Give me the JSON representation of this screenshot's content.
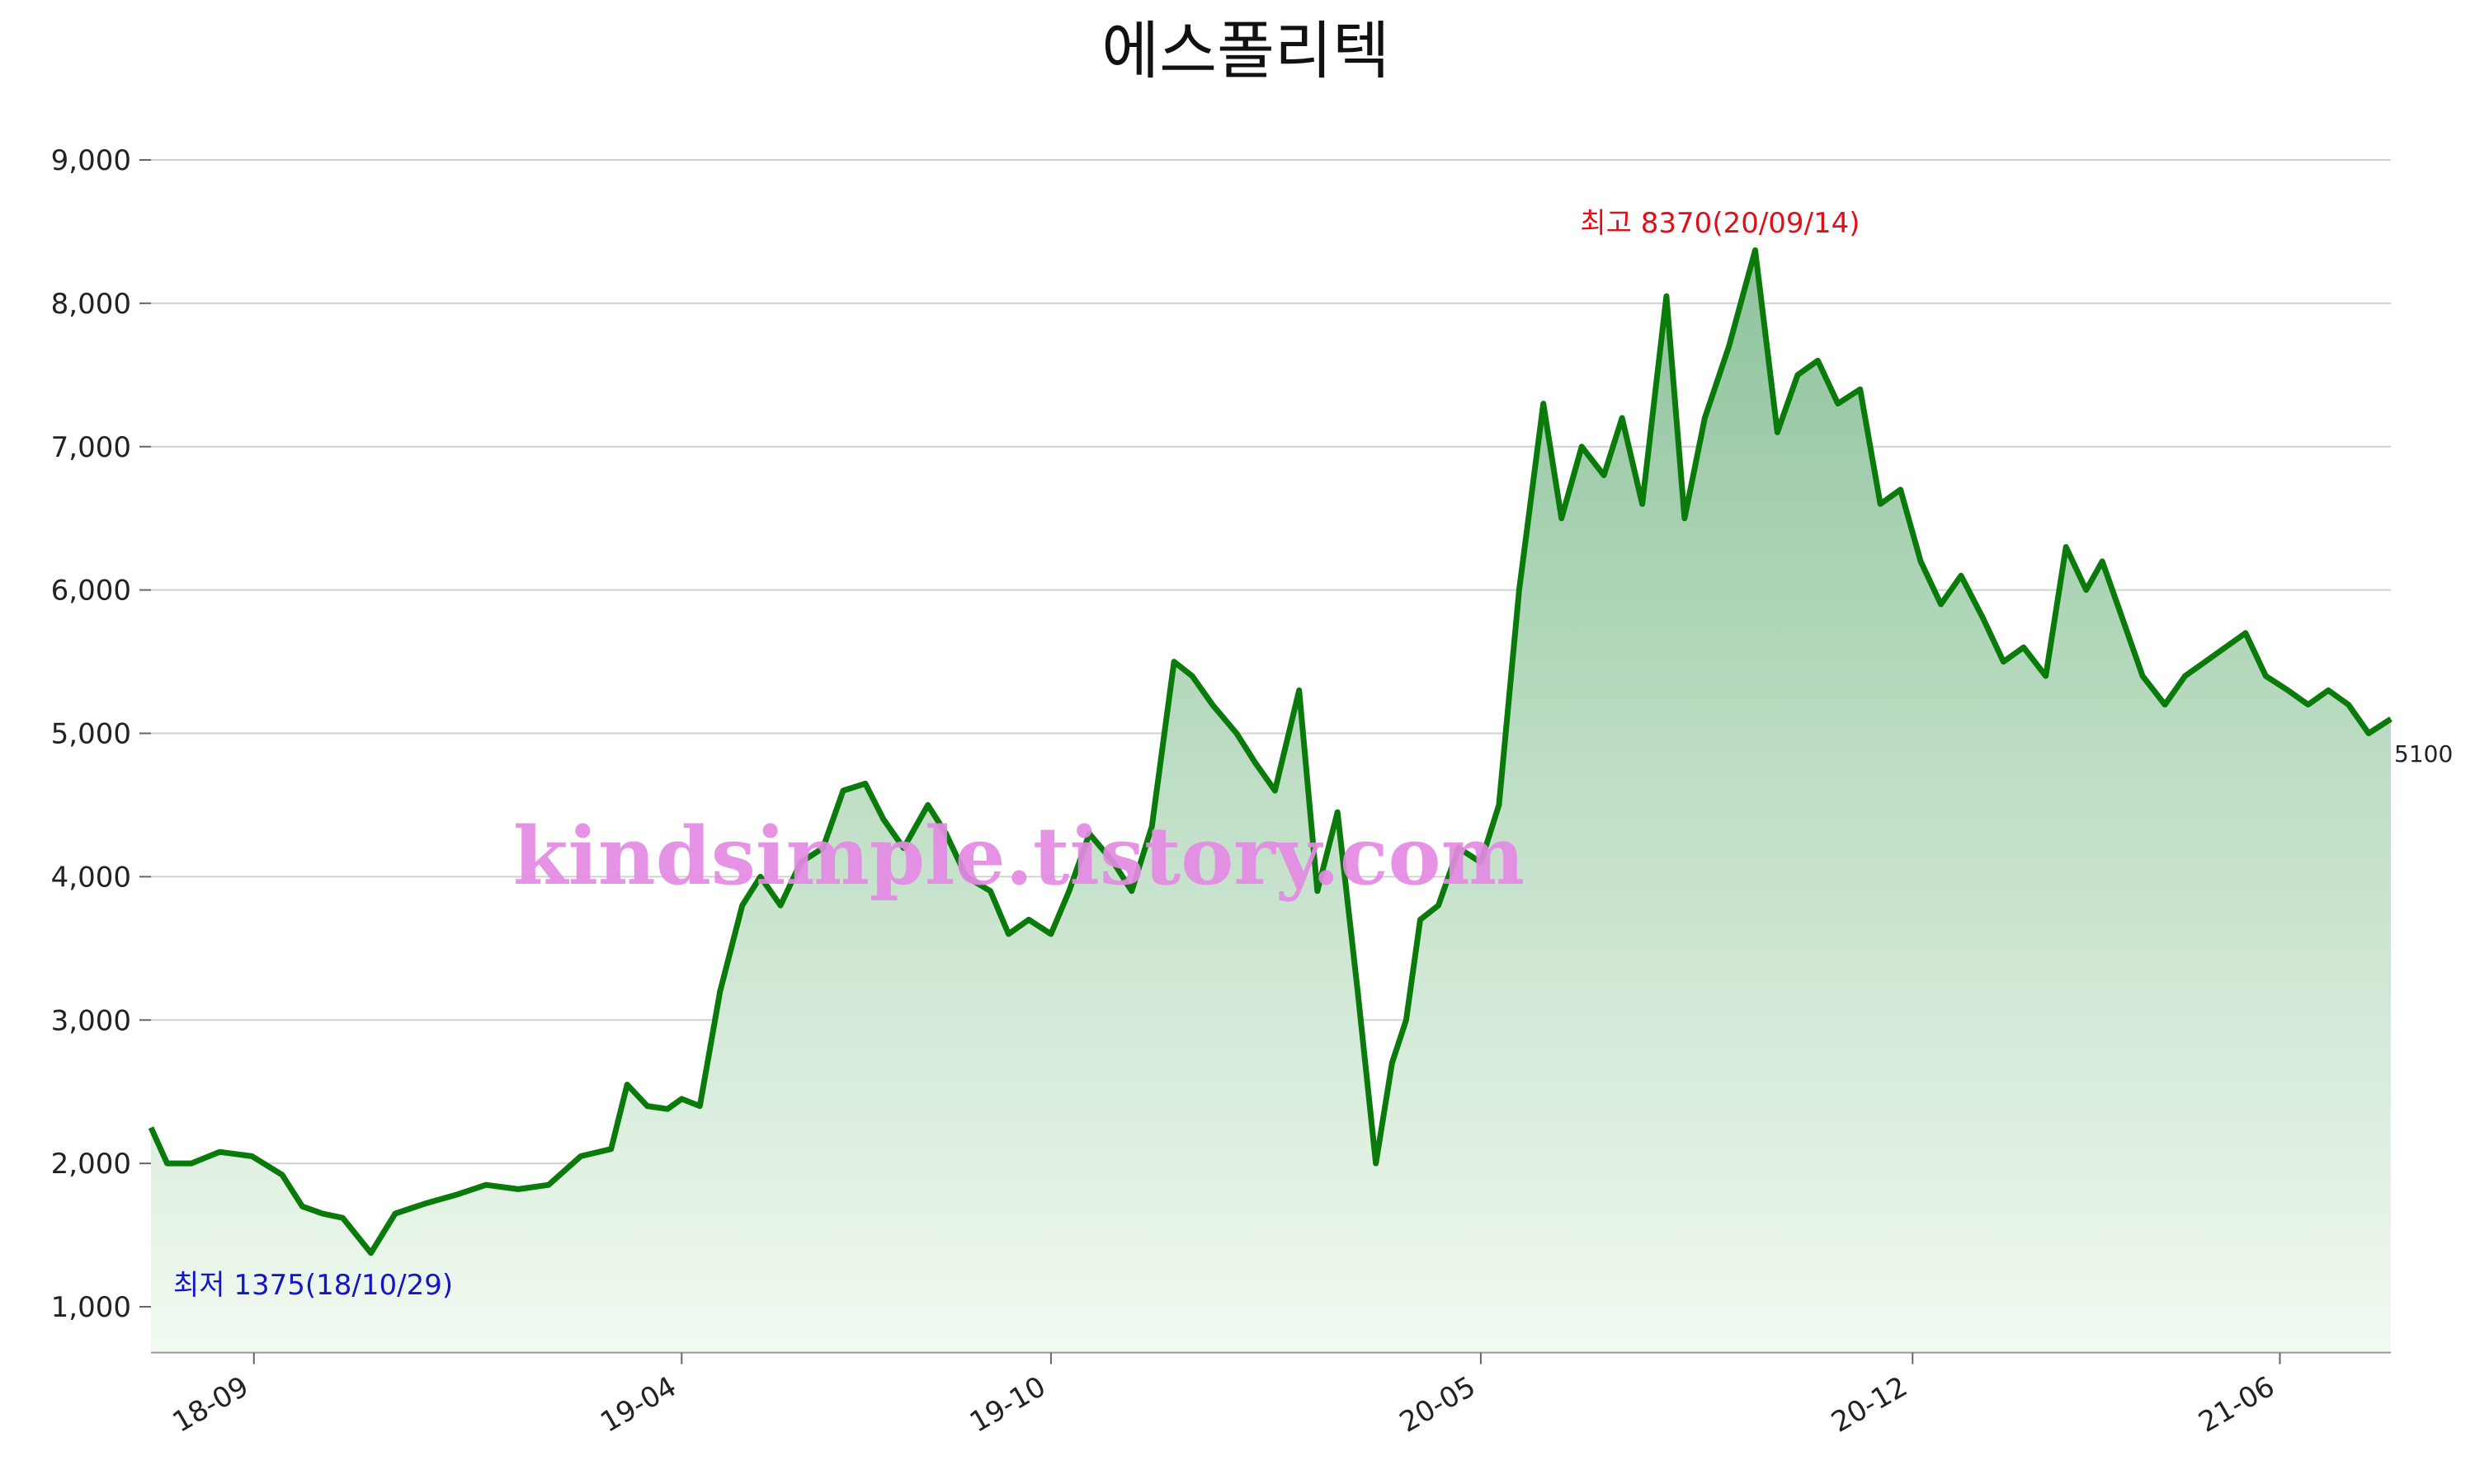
{
  "chart_data": {
    "type": "area",
    "title": "에스폴리텍",
    "xlabel": "",
    "ylabel": "",
    "ylim": [
      680,
      9000
    ],
    "yticks": [
      1000,
      2000,
      3000,
      4000,
      5000,
      6000,
      7000,
      8000,
      9000
    ],
    "ytick_labels": [
      "1,000",
      "2,000",
      "3,000",
      "4,000",
      "5,000",
      "6,000",
      "7,000",
      "8,000",
      "9,000"
    ],
    "xrange": [
      "2018-07-12",
      "2021-07-26"
    ],
    "xticks": [
      "2018-09-01",
      "2019-04-01",
      "2019-10-01",
      "2020-05-01",
      "2020-12-01",
      "2021-06-01"
    ],
    "xtick_labels": [
      "18-09",
      "19-04",
      "19-10",
      "20-05",
      "20-12",
      "21-06"
    ],
    "grid": true,
    "line_color": "#0a7a0a",
    "fill_color_top": "#8ec39c",
    "fill_color_bottom": "#f2faf1",
    "series": [
      {
        "x": [
          "2018-07-12",
          "2018-07-20",
          "2018-08-01",
          "2018-08-15",
          "2018-08-31",
          "2018-09-15",
          "2018-09-25",
          "2018-10-05",
          "2018-10-15",
          "2018-10-29",
          "2018-11-10",
          "2018-11-25",
          "2018-12-10",
          "2018-12-25",
          "2019-01-10",
          "2019-01-25",
          "2019-02-10",
          "2019-02-25",
          "2019-03-05",
          "2019-03-15",
          "2019-03-25",
          "2019-04-01",
          "2019-04-10",
          "2019-04-20",
          "2019-05-01",
          "2019-05-10",
          "2019-05-20",
          "2019-05-30",
          "2019-06-10",
          "2019-06-20",
          "2019-07-01",
          "2019-07-10",
          "2019-07-20",
          "2019-08-01",
          "2019-08-10",
          "2019-08-20",
          "2019-09-01",
          "2019-09-10",
          "2019-09-20",
          "2019-10-01",
          "2019-10-10",
          "2019-10-20",
          "2019-11-01",
          "2019-11-10",
          "2019-11-20",
          "2019-12-01",
          "2019-12-10",
          "2019-12-20",
          "2020-01-01",
          "2020-01-10",
          "2020-01-20",
          "2020-02-01",
          "2020-02-10",
          "2020-02-20",
          "2020-03-01",
          "2020-03-10",
          "2020-03-18",
          "2020-03-25",
          "2020-04-01",
          "2020-04-10",
          "2020-04-20",
          "2020-05-01",
          "2020-05-10",
          "2020-05-20",
          "2020-06-01",
          "2020-06-10",
          "2020-06-20",
          "2020-07-01",
          "2020-07-10",
          "2020-07-20",
          "2020-08-01",
          "2020-08-10",
          "2020-08-20",
          "2020-09-01",
          "2020-09-14",
          "2020-09-25",
          "2020-10-05",
          "2020-10-15",
          "2020-10-25",
          "2020-11-05",
          "2020-11-15",
          "2020-11-25",
          "2020-12-05",
          "2020-12-15",
          "2020-12-25",
          "2021-01-05",
          "2021-01-15",
          "2021-01-25",
          "2021-02-05",
          "2021-02-15",
          "2021-02-25",
          "2021-03-05",
          "2021-03-15",
          "2021-03-25",
          "2021-04-05",
          "2021-04-15",
          "2021-04-25",
          "2021-05-05",
          "2021-05-15",
          "2021-05-25",
          "2021-06-05",
          "2021-06-15",
          "2021-06-25",
          "2021-07-05",
          "2021-07-15",
          "2021-07-26"
        ],
        "values": [
          2250,
          2000,
          2000,
          2080,
          2050,
          1920,
          1700,
          1650,
          1620,
          1375,
          1650,
          1720,
          1780,
          1850,
          1820,
          1850,
          2050,
          2100,
          2550,
          2400,
          2380,
          2450,
          2400,
          3200,
          3800,
          4000,
          3800,
          4100,
          4200,
          4600,
          4650,
          4400,
          4200,
          4500,
          4300,
          4000,
          3900,
          3600,
          3700,
          3600,
          3900,
          4300,
          4100,
          3900,
          4350,
          5500,
          5400,
          5200,
          5000,
          4800,
          4600,
          5300,
          3900,
          4450,
          3200,
          2000,
          2700,
          3000,
          3700,
          3800,
          4200,
          4100,
          4500,
          6000,
          7300,
          6500,
          7000,
          6800,
          7200,
          6600,
          8050,
          6500,
          7200,
          7700,
          8370,
          7100,
          7500,
          7600,
          7300,
          7400,
          6600,
          6700,
          6200,
          5900,
          6100,
          5800,
          5500,
          5600,
          5400,
          6300,
          6000,
          6200,
          5800,
          5400,
          5200,
          5400,
          5500,
          5600,
          5700,
          5400,
          5300,
          5200,
          5300,
          5200,
          5000,
          5100
        ]
      }
    ],
    "annotations": {
      "high": "최고 8370(20/09/14)",
      "low": "최저 1375(18/10/29)",
      "last": "5100"
    },
    "watermark": "kindsimple.tistory.com"
  }
}
